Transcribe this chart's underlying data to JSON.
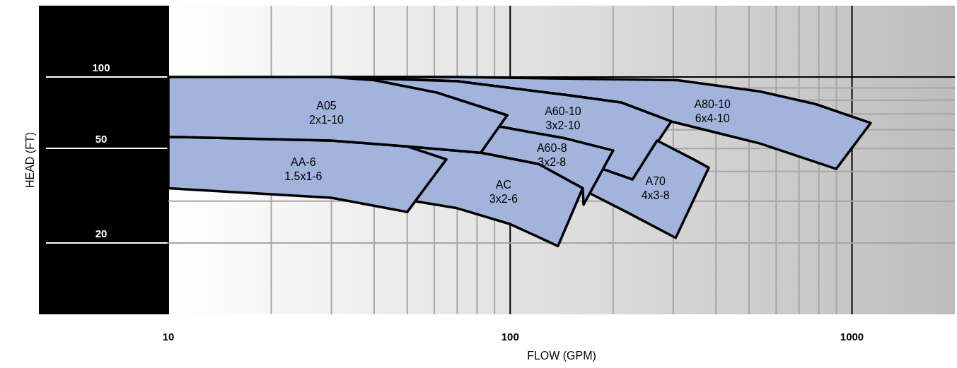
{
  "chart_data": {
    "type": "area",
    "xlabel": "FLOW (GPM)",
    "ylabel": "HEAD (FT)",
    "log": "xy",
    "grid": true,
    "line_style": "solid",
    "xlim": [
      10,
      2000
    ],
    "ylim": [
      10,
      200
    ],
    "xticks": [
      10,
      {
        "value": 20,
        "label": null
      },
      {
        "value": 30,
        "label": null
      },
      {
        "value": 40,
        "label": null
      },
      {
        "value": 50,
        "label": null
      },
      {
        "value": 60,
        "label": null
      },
      {
        "value": 70,
        "label": null
      },
      {
        "value": 80,
        "label": null
      },
      {
        "value": 90,
        "label": null
      },
      100,
      {
        "value": 200,
        "label": null
      },
      {
        "value": 300,
        "label": null
      },
      {
        "value": 400,
        "label": null
      },
      {
        "value": 500,
        "label": null
      },
      {
        "value": 600,
        "label": null
      },
      {
        "value": 700,
        "label": null
      },
      {
        "value": 800,
        "label": null
      },
      {
        "value": 900,
        "label": null
      },
      1000
    ],
    "yticks": [
      20,
      {
        "value": 30,
        "label": null
      },
      {
        "value": 40,
        "label": null
      },
      50,
      {
        "value": 60,
        "label": null
      },
      {
        "value": 70,
        "label": null
      },
      {
        "value": 80,
        "label": null
      },
      {
        "value": 90,
        "label": null
      },
      100
    ],
    "series": [
      {
        "name": "A80-10\n6x4-10",
        "color": "#a2b4dc",
        "x": [
          30,
          70,
          308,
          538,
          781,
          1134,
          899,
          538,
          296,
          212,
          146,
          70
        ],
        "values": [
          100,
          100,
          97,
          87,
          77,
          64,
          41,
          52.5,
          65,
          78,
          84,
          96
        ]
      },
      {
        "name": "A60-10\n3x2-10",
        "color": "#a2b4dc",
        "x": [
          30,
          70,
          146,
          212,
          296,
          228,
          186,
          200,
          146,
          92,
          98,
          61,
          40
        ],
        "values": [
          100,
          96,
          84,
          78,
          65,
          37,
          41,
          49,
          55,
          62,
          69,
          86,
          97
        ]
      },
      {
        "name": "A70\n4x3-8",
        "color": "#a2b4dc",
        "x": [
          269,
          344,
          381,
          305,
          219,
          170,
          186,
          228
        ],
        "values": [
          54,
          45,
          41.5,
          21,
          27,
          32.5,
          41,
          37
        ]
      },
      {
        "name": "A60-8\n3x2-8",
        "color": "#a2b4dc",
        "x": [
          82,
          92,
          146,
          200,
          164,
          163,
          121
        ],
        "values": [
          48,
          62,
          55,
          49,
          29,
          34,
          43
        ]
      },
      {
        "name": "AC\n3x2-6",
        "color": "#a2b4dc",
        "x": [
          50,
          82,
          121,
          163,
          138,
          100,
          70,
          52.5,
          65
        ],
        "values": [
          51,
          48,
          43,
          34,
          19.4,
          24,
          28,
          30,
          45
        ]
      },
      {
        "name": "AA-6\n1.5x1-6",
        "color": "#a2b4dc",
        "x": [
          10,
          30,
          50,
          65,
          50,
          30,
          10
        ],
        "values": [
          56,
          54,
          51,
          45,
          27,
          31,
          34
        ]
      },
      {
        "name": "A05\n2x1-10",
        "color": "#a2b4dc",
        "x": [
          10,
          30,
          40,
          61,
          98,
          82,
          50,
          30,
          10
        ],
        "values": [
          100,
          100,
          97,
          86,
          69,
          48,
          51,
          54,
          56
        ]
      }
    ]
  }
}
